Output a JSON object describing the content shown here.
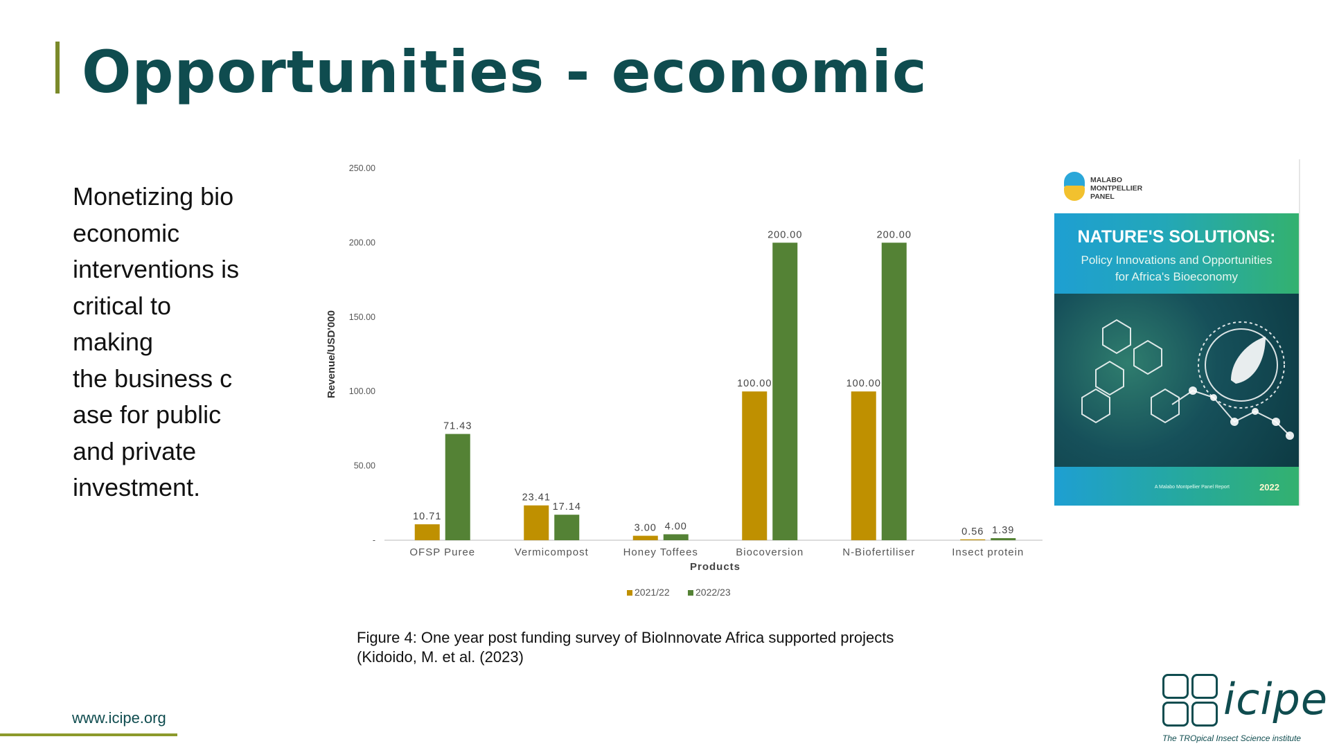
{
  "slide": {
    "title": "Opportunities - economic",
    "body_lines": [
      "Monetizing bio",
      "economic",
      "interventions is",
      "critical to",
      "making",
      "the business c",
      "ase for public",
      "and private",
      "investment."
    ],
    "caption_lines": [
      "Figure 4: One year post funding survey of BioInnovate Africa supported projects",
      "(Kidoido, M. et al. (2023)"
    ],
    "footer_url": "www.icipe.org",
    "colors": {
      "title": "#0f4c4f",
      "accent": "#8c9a2c"
    }
  },
  "cover": {
    "org_lines": [
      "MALABO",
      "MONTPELLIER",
      "PANEL"
    ],
    "headline": "NATURE'S SOLUTIONS:",
    "subtitle_lines": [
      "Policy Innovations and Opportunities",
      "for Africa's Bioeconomy"
    ],
    "footer_text": "A Malabo Montpellier Panel Report",
    "year": "2022"
  },
  "logo": {
    "wordmark": "icipe",
    "tagline": "The TROpical Insect Science institute"
  },
  "chart_data": {
    "type": "bar",
    "categories": [
      "OFSP Puree",
      "Vermicompost",
      "Honey Toffees",
      "Biocoversion",
      "N-Biofertiliser",
      "Insect protein"
    ],
    "series": [
      {
        "name": "2021/22",
        "values": [
          10.71,
          23.41,
          3.0,
          100.0,
          100.0,
          0.56
        ],
        "labels": [
          "10.71",
          "23.41",
          "3.00",
          "100.00",
          "100.00",
          "0.56"
        ],
        "color": "#bf9000"
      },
      {
        "name": "2022/23",
        "values": [
          71.43,
          17.14,
          4.0,
          200.0,
          200.0,
          1.39
        ],
        "labels": [
          "71.43",
          "17.14",
          "4.00",
          "200.00",
          "200.00",
          "1.39"
        ],
        "color": "#548235"
      }
    ],
    "xlabel": "Products",
    "ylabel": "Revenue/USD'000",
    "ylim": [
      0,
      250
    ],
    "yticks": [
      0,
      50,
      100,
      150,
      200,
      250
    ],
    "ytick_labels": [
      "-",
      "50.00",
      "100.00",
      "150.00",
      "200.00",
      "250.00"
    ],
    "legend": "bottom",
    "grid": false
  }
}
